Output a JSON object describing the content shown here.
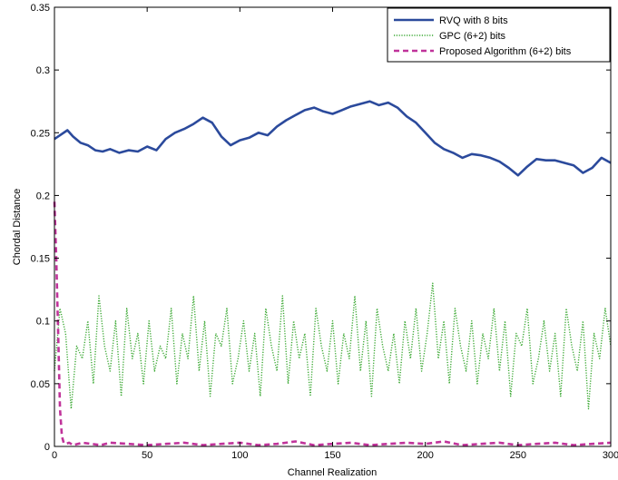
{
  "chart_data": {
    "type": "line",
    "title": "",
    "xlabel": "Channel Realization",
    "ylabel": "Chordal Distance",
    "xlim": [
      0,
      300
    ],
    "ylim": [
      0,
      0.35
    ],
    "x_ticks": [
      0,
      50,
      100,
      150,
      200,
      250,
      300
    ],
    "y_ticks": [
      0,
      0.05,
      0.1,
      0.15,
      0.2,
      0.25,
      0.3,
      0.35
    ],
    "x_tick_labels": [
      "0",
      "50",
      "100",
      "150",
      "200",
      "250",
      "300"
    ],
    "y_tick_labels": [
      "0",
      "0.05",
      "0.1",
      "0.15",
      "0.2",
      "0.25",
      "0.3",
      "0.35"
    ],
    "grid": false,
    "legend_position": "top-right",
    "series": [
      {
        "name": "RVQ with 8 bits",
        "color": "#2b4a9c",
        "style": "solid",
        "x": [
          0,
          3,
          7,
          10,
          14,
          18,
          22,
          26,
          30,
          35,
          40,
          45,
          50,
          55,
          60,
          65,
          70,
          75,
          80,
          85,
          90,
          95,
          100,
          105,
          110,
          115,
          120,
          125,
          130,
          135,
          140,
          145,
          150,
          155,
          160,
          165,
          170,
          175,
          180,
          185,
          190,
          195,
          200,
          205,
          210,
          215,
          220,
          225,
          230,
          235,
          240,
          245,
          250,
          255,
          260,
          265,
          270,
          275,
          280,
          285,
          290,
          295,
          300
        ],
        "y": [
          0.245,
          0.248,
          0.252,
          0.247,
          0.242,
          0.24,
          0.236,
          0.235,
          0.237,
          0.234,
          0.236,
          0.235,
          0.239,
          0.236,
          0.245,
          0.25,
          0.253,
          0.257,
          0.262,
          0.258,
          0.247,
          0.24,
          0.244,
          0.246,
          0.25,
          0.248,
          0.255,
          0.26,
          0.264,
          0.268,
          0.27,
          0.267,
          0.265,
          0.268,
          0.271,
          0.273,
          0.275,
          0.272,
          0.274,
          0.27,
          0.263,
          0.258,
          0.25,
          0.242,
          0.237,
          0.234,
          0.23,
          0.233,
          0.232,
          0.23,
          0.227,
          0.222,
          0.216,
          0.223,
          0.229,
          0.228,
          0.228,
          0.226,
          0.224,
          0.218,
          0.222,
          0.23,
          0.226
        ]
      },
      {
        "name": "GPC (6+2) bits",
        "color": "#3aa832",
        "style": "dotted",
        "x": [
          0,
          3,
          6,
          9,
          12,
          15,
          18,
          21,
          24,
          27,
          30,
          33,
          36,
          39,
          42,
          45,
          48,
          51,
          54,
          57,
          60,
          63,
          66,
          69,
          72,
          75,
          78,
          81,
          84,
          87,
          90,
          93,
          96,
          99,
          102,
          105,
          108,
          111,
          114,
          117,
          120,
          123,
          126,
          129,
          132,
          135,
          138,
          141,
          144,
          147,
          150,
          153,
          156,
          159,
          162,
          165,
          168,
          171,
          174,
          177,
          180,
          183,
          186,
          189,
          192,
          195,
          198,
          201,
          204,
          207,
          210,
          213,
          216,
          219,
          222,
          225,
          228,
          231,
          234,
          237,
          240,
          243,
          246,
          249,
          252,
          255,
          258,
          261,
          264,
          267,
          270,
          273,
          276,
          279,
          282,
          285,
          288,
          291,
          294,
          297,
          300
        ],
        "y": [
          0.06,
          0.11,
          0.09,
          0.03,
          0.08,
          0.07,
          0.1,
          0.05,
          0.12,
          0.08,
          0.06,
          0.1,
          0.04,
          0.11,
          0.07,
          0.09,
          0.05,
          0.1,
          0.06,
          0.08,
          0.07,
          0.11,
          0.05,
          0.09,
          0.07,
          0.12,
          0.06,
          0.1,
          0.04,
          0.09,
          0.08,
          0.11,
          0.05,
          0.07,
          0.1,
          0.06,
          0.09,
          0.04,
          0.11,
          0.08,
          0.06,
          0.12,
          0.05,
          0.1,
          0.07,
          0.09,
          0.04,
          0.11,
          0.08,
          0.06,
          0.1,
          0.05,
          0.09,
          0.07,
          0.12,
          0.06,
          0.1,
          0.04,
          0.11,
          0.08,
          0.06,
          0.09,
          0.05,
          0.1,
          0.07,
          0.11,
          0.06,
          0.09,
          0.13,
          0.07,
          0.1,
          0.05,
          0.11,
          0.08,
          0.06,
          0.1,
          0.05,
          0.09,
          0.07,
          0.11,
          0.06,
          0.1,
          0.04,
          0.09,
          0.08,
          0.11,
          0.05,
          0.07,
          0.1,
          0.06,
          0.09,
          0.04,
          0.11,
          0.08,
          0.06,
          0.1,
          0.03,
          0.09,
          0.07,
          0.11,
          0.08
        ]
      },
      {
        "name": "Proposed Algorithm (6+2) bits",
        "color": "#c0339a",
        "style": "dashed",
        "x": [
          0,
          1,
          2,
          3,
          4,
          5,
          6,
          8,
          10,
          15,
          20,
          25,
          30,
          40,
          50,
          60,
          70,
          80,
          90,
          100,
          110,
          120,
          130,
          140,
          150,
          160,
          170,
          180,
          190,
          200,
          210,
          220,
          230,
          240,
          250,
          260,
          270,
          280,
          290,
          300
        ],
        "y": [
          0.195,
          0.15,
          0.09,
          0.03,
          0.008,
          0.003,
          0.002,
          0.003,
          0.001,
          0.003,
          0.002,
          0.001,
          0.003,
          0.002,
          0.001,
          0.002,
          0.003,
          0.001,
          0.002,
          0.003,
          0.001,
          0.002,
          0.004,
          0.001,
          0.002,
          0.003,
          0.001,
          0.002,
          0.003,
          0.002,
          0.004,
          0.001,
          0.002,
          0.003,
          0.001,
          0.002,
          0.003,
          0.001,
          0.002,
          0.003
        ]
      }
    ]
  }
}
